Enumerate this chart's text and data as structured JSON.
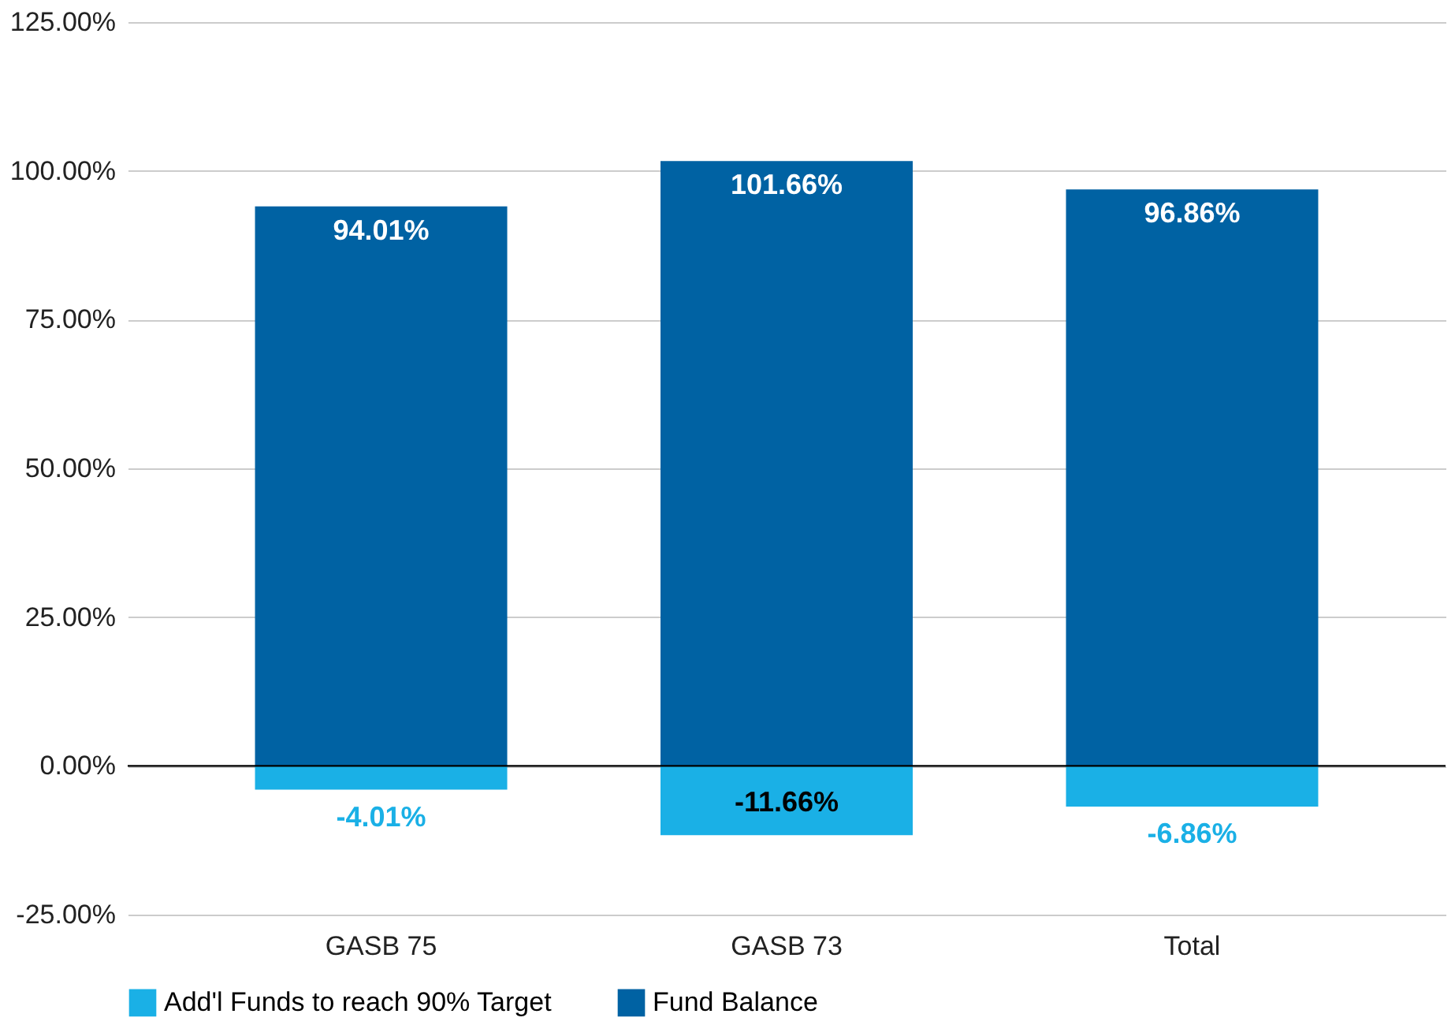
{
  "chart_data": {
    "type": "bar",
    "stacked": true,
    "categories": [
      "GASB 75",
      "GASB 73",
      "Total"
    ],
    "series": [
      {
        "name": "Add'l Funds to reach 90% Target",
        "color": "#1ab0e6",
        "values": [
          -4.01,
          -11.66,
          -6.86
        ],
        "value_labels": [
          "-4.01%",
          "-11.66%",
          "-6.86%"
        ]
      },
      {
        "name": "Fund Balance",
        "color": "#0062a3",
        "values": [
          94.01,
          101.66,
          96.86
        ],
        "value_labels": [
          "94.01%",
          "101.66%",
          "96.86%"
        ]
      }
    ],
    "ylim": [
      -25,
      125
    ],
    "yticks": [
      {
        "value": -25,
        "label": "-25.00%"
      },
      {
        "value": 0,
        "label": "0.00%"
      },
      {
        "value": 25,
        "label": "25.00%"
      },
      {
        "value": 50,
        "label": "50.00%"
      },
      {
        "value": 75,
        "label": "75.00%"
      },
      {
        "value": 100,
        "label": "100.00%"
      },
      {
        "value": 125,
        "label": "125.00%"
      }
    ],
    "grid": "y",
    "legend": "bottom"
  }
}
